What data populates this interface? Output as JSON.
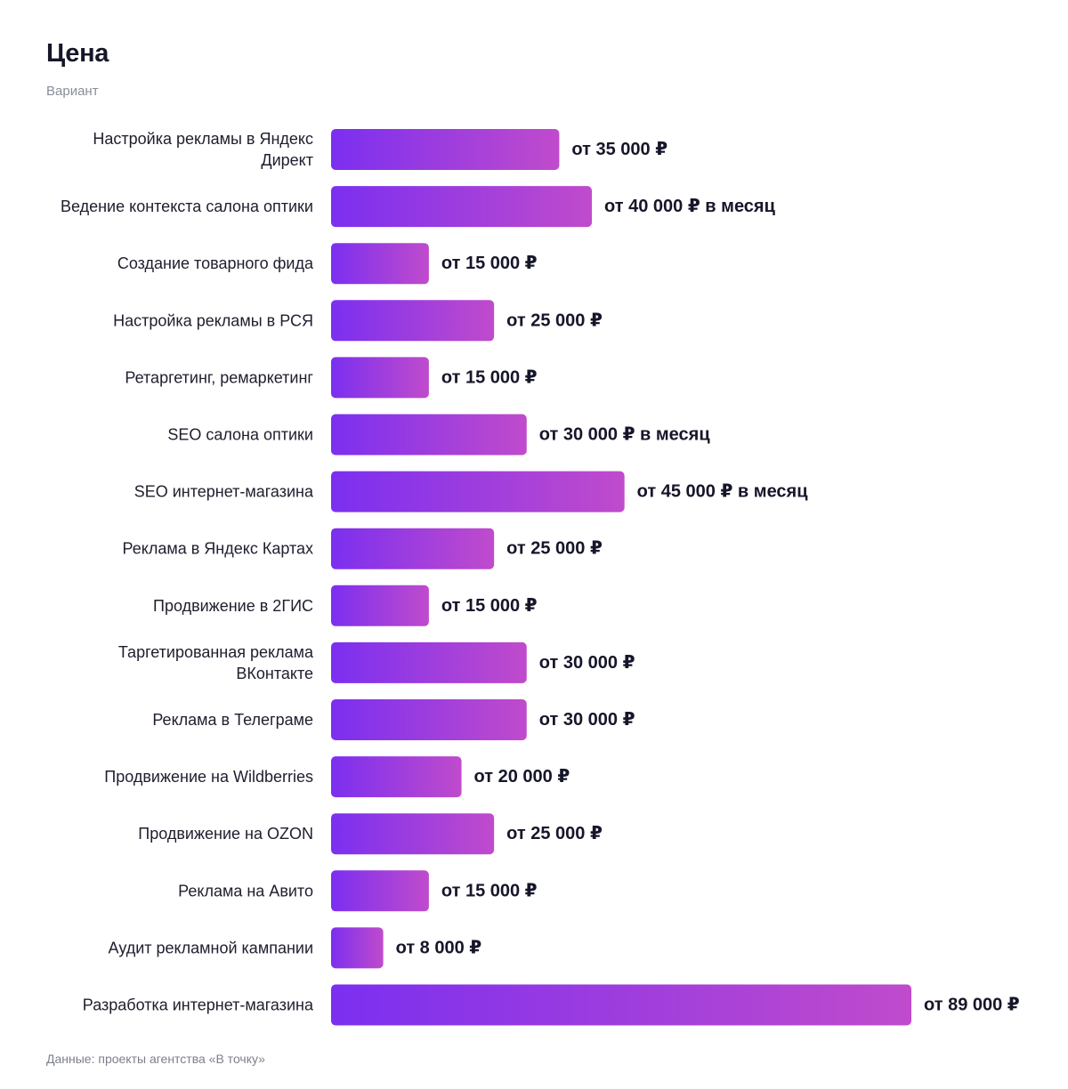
{
  "header": {
    "title": "Цена",
    "subtitle": "Вариант"
  },
  "footer": {
    "source": "Данные: проекты агентства «В точку»"
  },
  "colors": {
    "bar_gradient_start": "#7b2ff0",
    "bar_gradient_end": "#c04bcc",
    "text": "#1e1e2e",
    "muted": "#8a8d99"
  },
  "chart_data": {
    "type": "bar",
    "orientation": "horizontal",
    "title": "Цена",
    "subtitle": "Вариант",
    "xlabel": "",
    "ylabel": "",
    "grid": false,
    "legend": "none",
    "categories": [
      "Настройка рекламы в Яндекс Директ",
      "Ведение контекста салона оптики",
      "Создание товарного фида",
      "Настройка рекламы в РСЯ",
      "Ретаргетинг, ремаркетинг",
      "SEO салона оптики",
      "SEO интернет-магазина",
      "Реклама в Яндекс Картах",
      "Продвижение в 2ГИС",
      "Таргетированная реклама ВКонтакте",
      "Реклама в Телеграме",
      "Продвижение на Wildberries",
      "Продвижение на OZON",
      "Реклама на Авито",
      "Аудит рекламной кампании",
      "Разработка интернет-магазина"
    ],
    "category_lines": [
      [
        "Настройка рекламы в Яндекс",
        "Директ"
      ],
      [
        "Ведение контекста салона оптики"
      ],
      [
        "Создание товарного фида"
      ],
      [
        "Настройка рекламы в РСЯ"
      ],
      [
        "Ретаргетинг, ремаркетинг"
      ],
      [
        "SEO салона оптики"
      ],
      [
        "SEO интернет-магазина"
      ],
      [
        "Реклама в Яндекс Картах"
      ],
      [
        "Продвижение в 2ГИС"
      ],
      [
        "Таргетированная реклама",
        "ВКонтакте"
      ],
      [
        "Реклама в Телеграме"
      ],
      [
        "Продвижение на Wildberries"
      ],
      [
        "Продвижение на OZON"
      ],
      [
        "Реклама на Авито"
      ],
      [
        "Аудит рекламной кампании"
      ],
      [
        "Разработка интернет-магазина"
      ]
    ],
    "values": [
      35000,
      40000,
      15000,
      25000,
      15000,
      30000,
      45000,
      25000,
      15000,
      30000,
      30000,
      20000,
      25000,
      15000,
      8000,
      89000
    ],
    "value_labels": [
      "от 35 000 ₽",
      "от 40 000 ₽ в месяц",
      "от 15 000 ₽",
      "от 25 000 ₽",
      "от 15 000 ₽",
      "от 30 000 ₽ в месяц",
      "от 45 000 ₽ в месяц",
      "от 25 000 ₽",
      "от 15 000 ₽",
      "от 30 000 ₽",
      "от 30 000 ₽",
      "от 20 000 ₽",
      "от 25 000 ₽",
      "от 15 000 ₽",
      "от 8 000 ₽",
      "от 89 000 ₽"
    ],
    "xlim": [
      0,
      89000
    ]
  }
}
